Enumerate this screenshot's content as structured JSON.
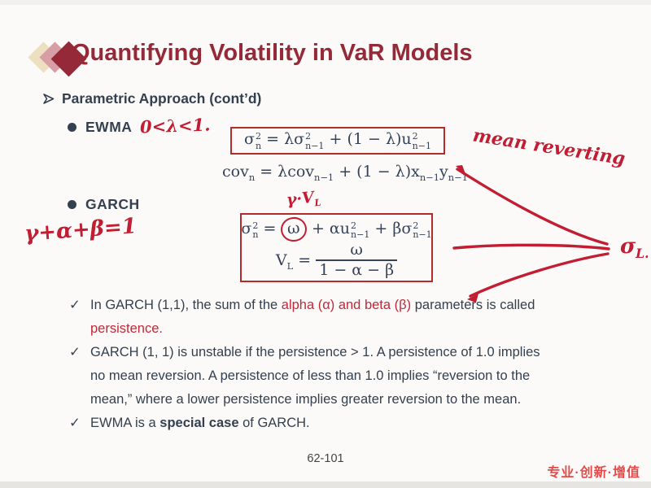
{
  "colors": {
    "title_maroon": "#962937",
    "body_dark": "#34404f",
    "annotation_red": "#c21d32",
    "formula_box_border": "#b52a2a",
    "brand_red": "#e34b4a",
    "diamond_cream": "#ede0c1",
    "diamond_pink": "#d79ea6"
  },
  "icons": {
    "logo": "three-overlapping-diamonds",
    "section_bullet": "arrow-bullet",
    "item_bullet": "circle-bullet",
    "check_glyph": "✓"
  },
  "header": {
    "title": "Quantifying Volatility in VaR Models"
  },
  "content": {
    "section_label": "Parametric Approach (cont’d)",
    "ewma_label": "EWMA",
    "garch_label": "GARCH"
  },
  "formulas": {
    "ewma": [
      {
        "t": "σ",
        "sup": "2",
        "sub2": "n"
      },
      {
        "t": " = λ"
      },
      {
        "t": "σ",
        "sup": "2",
        "sub2": "n−1"
      },
      {
        "t": " + (1 − λ)"
      },
      {
        "t": "u",
        "sup": "2",
        "sub2": "n−1"
      }
    ],
    "cov": [
      {
        "t": "cov",
        "sub": "n"
      },
      {
        "t": " = λcov",
        "sub": "n−1"
      },
      {
        "t": " + (1 − λ)x",
        "sub": "n−1"
      },
      {
        "t": "y",
        "sub": "n−1"
      }
    ],
    "garch": [
      {
        "t": "σ",
        "sup": "2",
        "sub2": "n"
      },
      {
        "t": " = "
      },
      {
        "t": "ω",
        "circle": true
      },
      {
        "t": " + α"
      },
      {
        "t": "u",
        "sup": "2",
        "sub2": "n−1"
      },
      {
        "t": " + β"
      },
      {
        "t": "σ",
        "sup": "2",
        "sub2": "n−1"
      }
    ],
    "vl": [
      {
        "t": "V",
        "sub": "L"
      },
      {
        "t": " = "
      },
      {
        "frac": {
          "num": "ω",
          "den": "1 − α − β"
        }
      }
    ]
  },
  "annotations": {
    "lambda_range": "0<λ<1.",
    "mean_reverting": "mean reverting",
    "gamma_sum": "γ+α+β=1",
    "gamma_vl": [
      {
        "t": "γ·V",
        "sub": "L"
      }
    ],
    "sigma_long_run": [
      {
        "t": "σ",
        "sub": "L."
      }
    ]
  },
  "checklist": {
    "check_glyph": "✓",
    "items": [
      {
        "segments": [
          {
            "t": "In GARCH (1,1), the sum of the "
          },
          {
            "t": "alpha (α) and beta (β)",
            "c": "red"
          },
          {
            "t": " parameters is called"
          },
          {
            "br": true
          },
          {
            "t": "persistence.",
            "c": "red"
          }
        ]
      },
      {
        "segments": [
          {
            "t": "GARCH (1, 1) is unstable if the persistence > 1. A persistence of 1.0 implies"
          },
          {
            "br": true
          },
          {
            "t": "no mean reversion. A persistence of less than 1.0 implies “reversion to the"
          },
          {
            "br": true
          },
          {
            "t": "mean,” where a lower persistence implies greater reversion to the mean."
          }
        ]
      },
      {
        "segments": [
          {
            "t": "EWMA is a "
          },
          {
            "t": "special case",
            "c": "bold"
          },
          {
            "t": " of GARCH."
          }
        ]
      }
    ]
  },
  "footer": {
    "page_number": "62-101",
    "brand_text": "专业·创新·增值"
  }
}
